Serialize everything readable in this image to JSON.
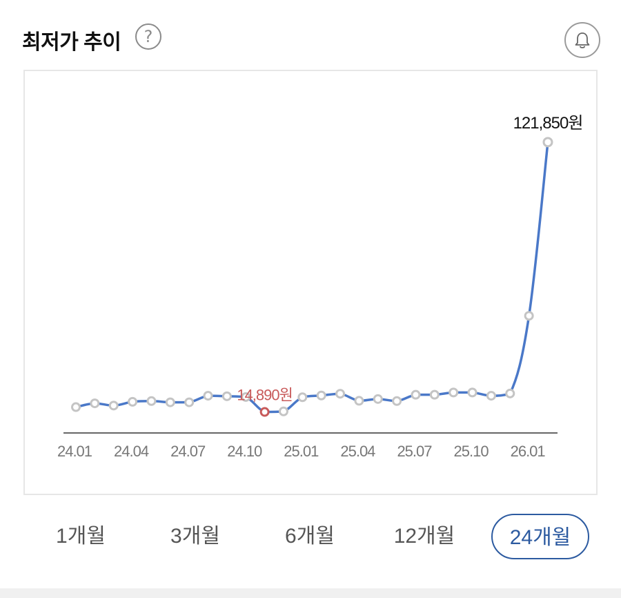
{
  "header": {
    "title": "최저가 추이",
    "help_glyph": "?"
  },
  "tabs": [
    {
      "label": "1개월",
      "active": false
    },
    {
      "label": "3개월",
      "active": false
    },
    {
      "label": "6개월",
      "active": false
    },
    {
      "label": "12개월",
      "active": false
    },
    {
      "label": "24개월",
      "active": true
    }
  ],
  "colors": {
    "line": "#4a78c8",
    "point_fill": "#ffffff",
    "point_stroke": "#c4c4c4",
    "min_marker": "#c85a5a",
    "axis": "#666666",
    "tick_label": "#777777",
    "active_tab": "#2c5aa0"
  },
  "chart_data": {
    "type": "line",
    "x": [
      "24.01",
      "24.02",
      "24.03",
      "24.04",
      "24.05",
      "24.06",
      "24.07",
      "24.08",
      "24.09",
      "24.10",
      "24.11",
      "24.12",
      "25.01",
      "25.02",
      "25.03",
      "25.04",
      "25.05",
      "25.06",
      "25.07",
      "25.08",
      "25.09",
      "25.10",
      "25.11",
      "25.12",
      "26.01",
      "26.02"
    ],
    "tick_labels": [
      "24.01",
      "24.04",
      "24.07",
      "24.10",
      "25.01",
      "25.04",
      "25.07",
      "25.10",
      "26.01"
    ],
    "tick_indices": [
      0,
      3,
      6,
      9,
      12,
      15,
      18,
      21,
      24
    ],
    "series": [
      {
        "values": [
          16800,
          18300,
          17400,
          18900,
          19200,
          18700,
          18700,
          21300,
          21100,
          20800,
          14890,
          15100,
          20700,
          21400,
          22100,
          19300,
          20000,
          19200,
          21700,
          21700,
          22600,
          22600,
          21300,
          22200,
          53000,
          121850
        ]
      }
    ],
    "annotations": [
      {
        "index": 10,
        "text": "14,890원",
        "kind": "min"
      },
      {
        "index": 25,
        "text": "121,850원",
        "kind": "max"
      }
    ],
    "ylim": [
      6000,
      150000
    ],
    "grid": false,
    "legend": "none"
  }
}
